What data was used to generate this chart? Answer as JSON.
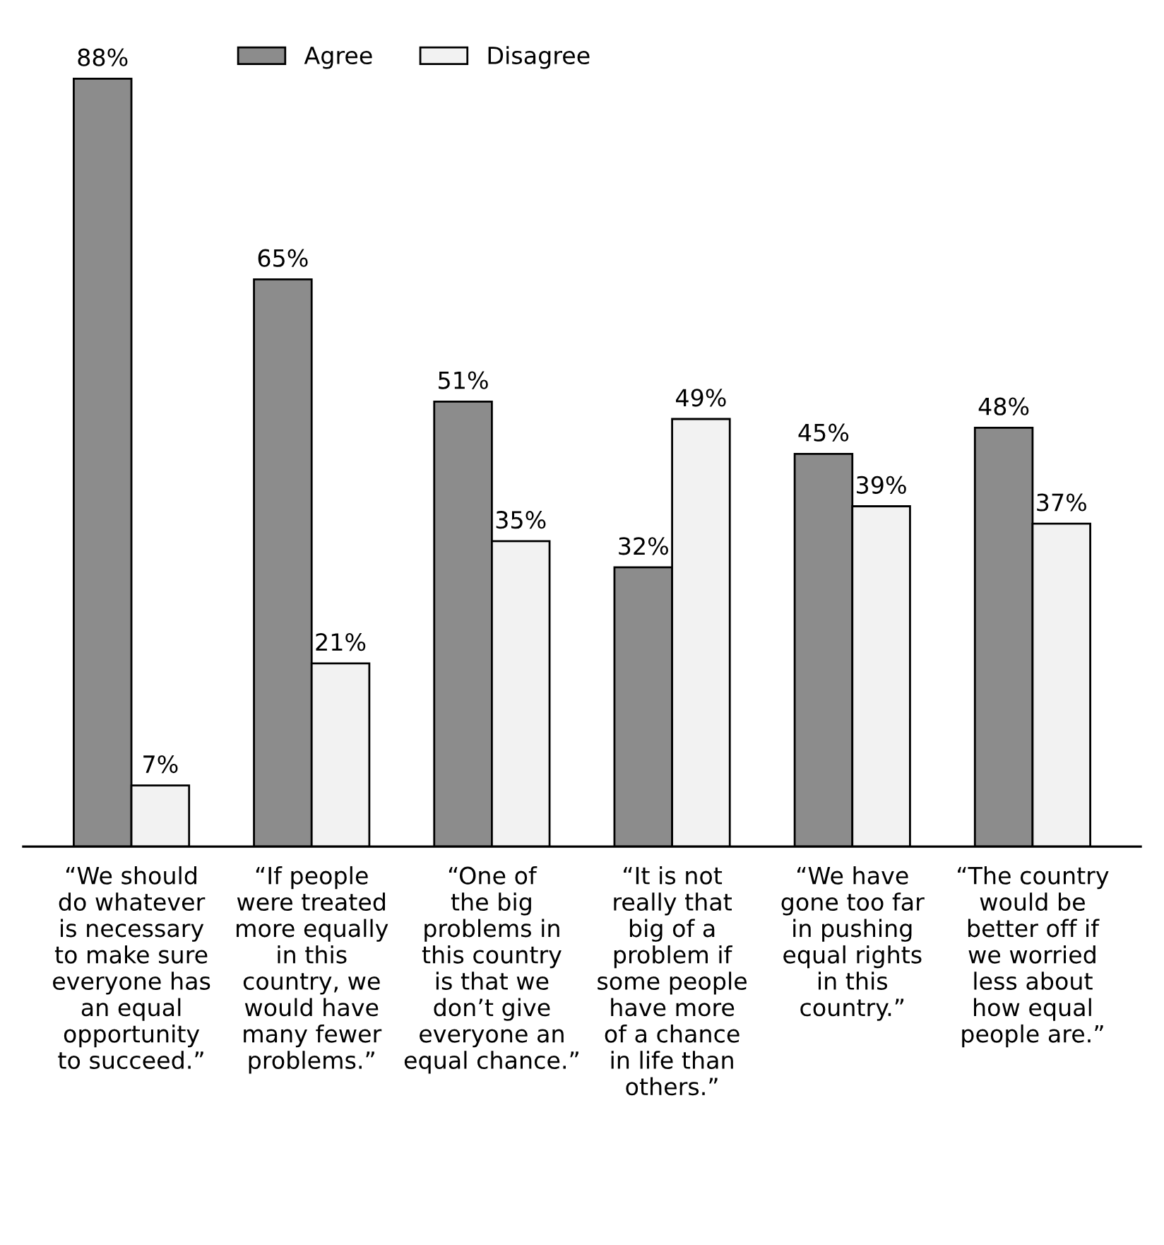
{
  "chart_data": {
    "type": "bar",
    "categories": [
      "“We should\ndo whatever\nis necessary\nto make sure\neveryone has\nan equal\nopportunity\nto succeed.”",
      "“If people\nwere treated\nmore equally\nin this\ncountry, we\nwould have\nmany fewer\nproblems.”",
      "“One of\nthe big\nproblems in\nthis country\nis that we\ndon’t give\neveryone an\nequal chance.”",
      "“It is not\nreally that\nbig of a\nproblem if\nsome people\nhave more\nof a chance\nin life than\nothers.”",
      "“We have\ngone too far\nin pushing\nequal rights\nin this\ncountry.”",
      "“The country\nwould be\nbetter off if\nwe worried\nless about\nhow equal\npeople are.”"
    ],
    "series": [
      {
        "name": "Agree",
        "color": "#8c8c8c",
        "values": [
          88,
          65,
          51,
          32,
          45,
          48
        ],
        "value_labels": [
          "88%",
          "65%",
          "51%",
          "32%",
          "45%",
          "48%"
        ]
      },
      {
        "name": "Disagree",
        "color": "#f2f2f2",
        "values": [
          7,
          21,
          35,
          49,
          39,
          37
        ],
        "value_labels": [
          "7%",
          "21%",
          "35%",
          "49%",
          "39%",
          "37%"
        ]
      }
    ],
    "legend": "top",
    "grid": false,
    "tick_labels": "x"
  }
}
